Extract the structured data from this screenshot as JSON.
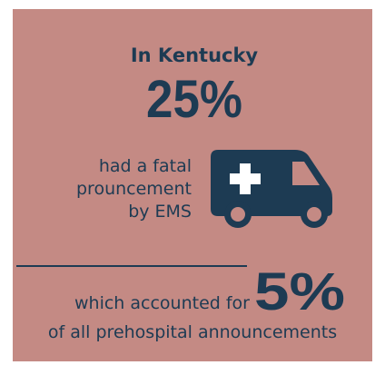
{
  "title": "In Kentucky",
  "stat1": {
    "value": "25%",
    "text": [
      "had a fatal",
      "prouncement",
      "by EMS"
    ]
  },
  "stat2": {
    "prefix": "which accounted for",
    "value": "5%",
    "suffix": "of all prehospital announcements"
  }
}
